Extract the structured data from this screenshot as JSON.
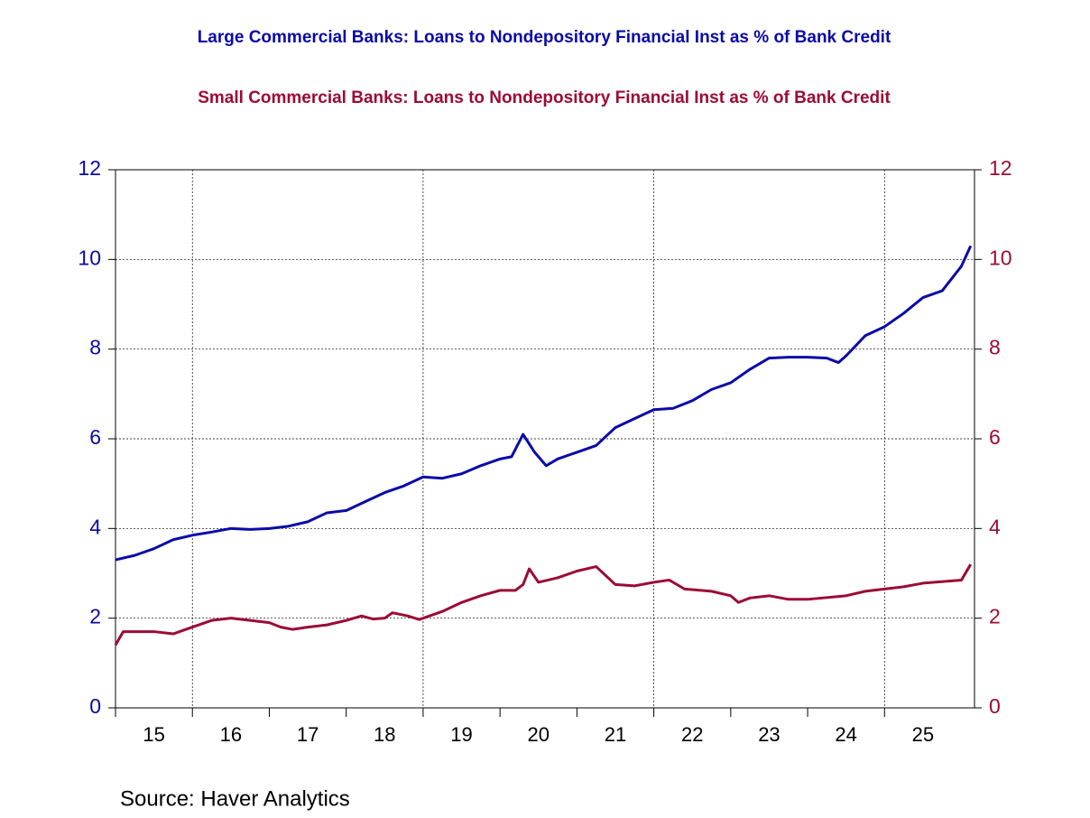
{
  "chart_data": {
    "type": "line",
    "source": "Source:  Haver Analytics",
    "xlim": [
      15,
      26.17
    ],
    "xticks": [
      15,
      16,
      17,
      18,
      19,
      20,
      21,
      22,
      23,
      24,
      25
    ],
    "xgrid_at": [
      16,
      19,
      22,
      25
    ],
    "ylim": [
      0,
      12
    ],
    "yticks": [
      0,
      2,
      4,
      6,
      8,
      10,
      12
    ],
    "y2lim": [
      0,
      12
    ],
    "y2ticks": [
      0,
      2,
      4,
      6,
      8,
      10,
      12
    ],
    "grid": true,
    "series": [
      {
        "name": "Large Commercial Banks: Loans to Nondepository Financial Inst as % of Bank Credit",
        "color": "#0a0aa8",
        "x": [
          15.0,
          15.25,
          15.5,
          15.75,
          16.0,
          16.25,
          16.5,
          16.75,
          17.0,
          17.25,
          17.5,
          17.75,
          18.0,
          18.25,
          18.5,
          18.75,
          19.0,
          19.25,
          19.5,
          19.75,
          20.0,
          20.15,
          20.3,
          20.45,
          20.6,
          20.75,
          21.0,
          21.25,
          21.5,
          21.75,
          22.0,
          22.25,
          22.5,
          22.75,
          23.0,
          23.25,
          23.5,
          23.75,
          24.0,
          24.25,
          24.4,
          24.5,
          24.75,
          25.0,
          25.25,
          25.5,
          25.75,
          26.0,
          26.12
        ],
        "values": [
          3.3,
          3.4,
          3.55,
          3.75,
          3.85,
          3.92,
          4.0,
          3.98,
          4.0,
          4.05,
          4.15,
          4.35,
          4.4,
          4.6,
          4.8,
          4.95,
          5.15,
          5.12,
          5.22,
          5.4,
          5.55,
          5.6,
          6.1,
          5.7,
          5.4,
          5.55,
          5.7,
          5.85,
          6.25,
          6.45,
          6.65,
          6.68,
          6.85,
          7.1,
          7.25,
          7.55,
          7.8,
          7.82,
          7.82,
          7.8,
          7.7,
          7.85,
          8.3,
          8.5,
          8.8,
          9.15,
          9.3,
          9.85,
          10.3
        ]
      },
      {
        "name": "Small Commercial Banks: Loans to Nondepository Financial Inst as % of Bank Credit",
        "color": "#9b0b35",
        "axis": "y2",
        "x": [
          15.0,
          15.1,
          15.5,
          15.75,
          16.0,
          16.25,
          16.5,
          17.0,
          17.15,
          17.3,
          17.5,
          17.75,
          18.0,
          18.2,
          18.35,
          18.5,
          18.6,
          18.8,
          18.95,
          19.25,
          19.5,
          19.75,
          20.0,
          20.2,
          20.3,
          20.38,
          20.5,
          20.75,
          21.0,
          21.25,
          21.5,
          21.75,
          22.0,
          22.2,
          22.4,
          22.75,
          23.0,
          23.1,
          23.25,
          23.5,
          23.75,
          24.0,
          24.5,
          24.75,
          25.0,
          25.25,
          25.5,
          26.0,
          26.12
        ],
        "values": [
          1.4,
          1.7,
          1.7,
          1.65,
          1.8,
          1.95,
          2.0,
          1.9,
          1.8,
          1.75,
          1.8,
          1.85,
          1.95,
          2.05,
          1.98,
          2.0,
          2.12,
          2.05,
          1.97,
          2.15,
          2.35,
          2.5,
          2.62,
          2.62,
          2.75,
          3.1,
          2.8,
          2.9,
          3.05,
          3.15,
          2.75,
          2.72,
          2.8,
          2.85,
          2.65,
          2.6,
          2.5,
          2.35,
          2.45,
          2.5,
          2.42,
          2.42,
          2.5,
          2.6,
          2.65,
          2.7,
          2.78,
          2.85,
          3.2
        ]
      }
    ]
  }
}
